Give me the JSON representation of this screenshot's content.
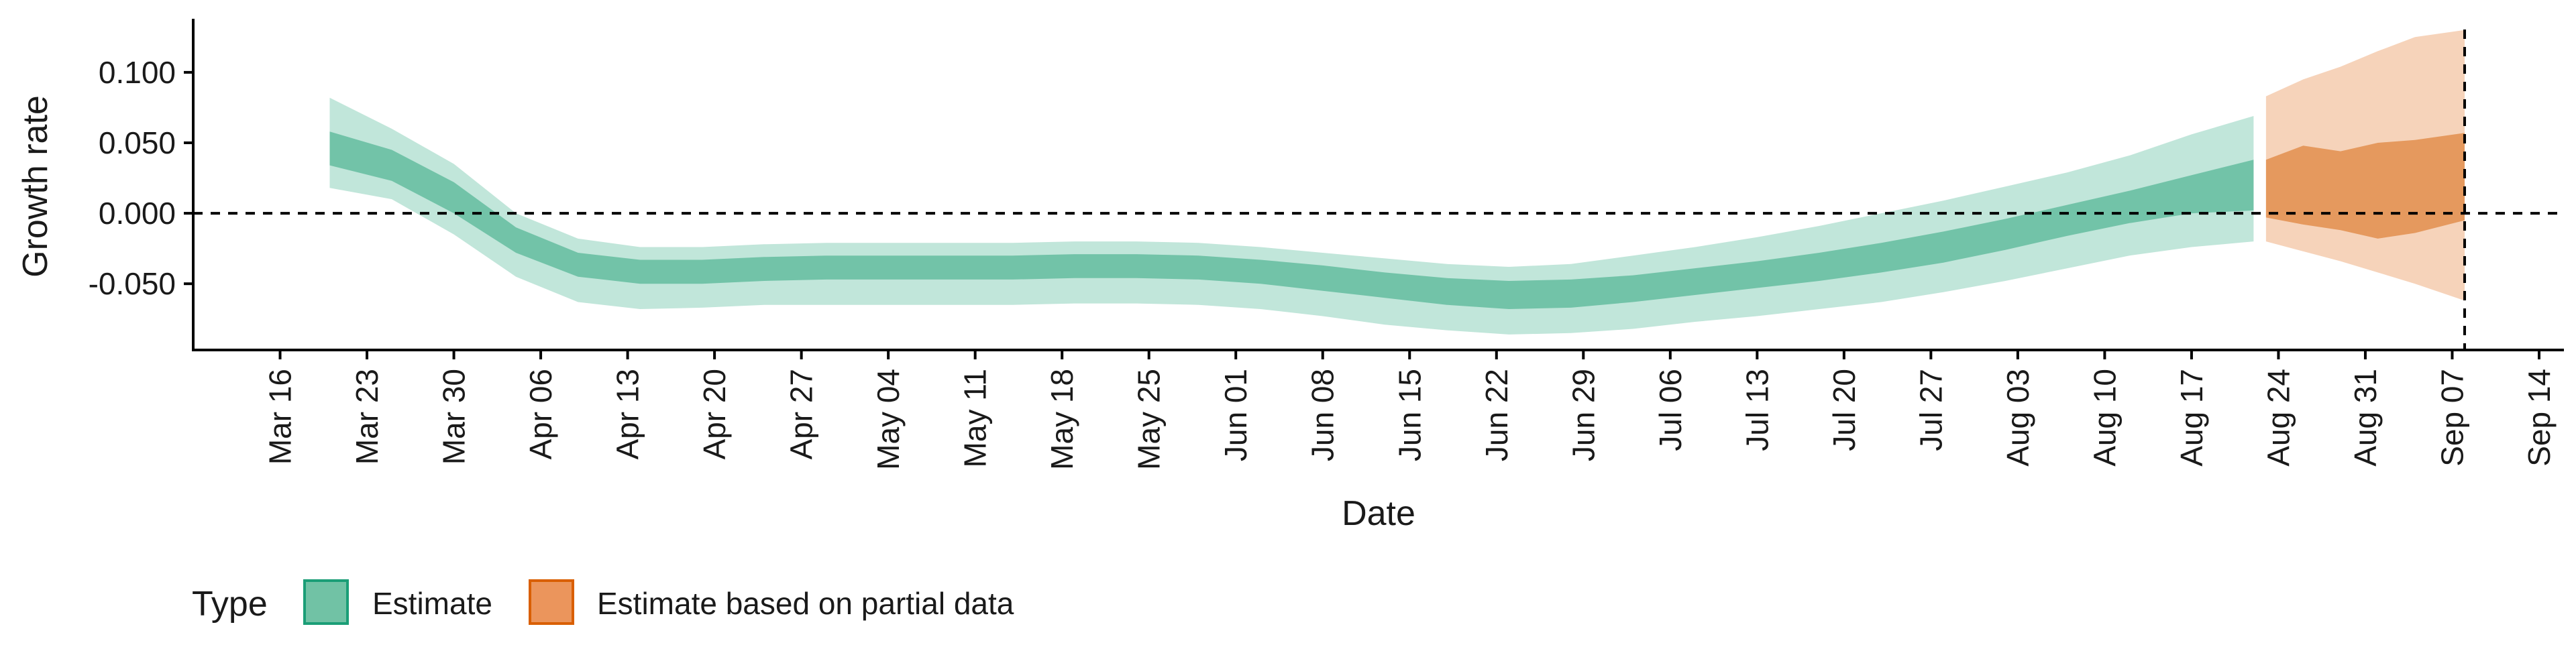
{
  "chart_data": {
    "type": "area",
    "title": "",
    "xlabel": "Date",
    "ylabel": "Growth rate",
    "x_tick_labels": [
      "Mar 16",
      "Mar 23",
      "Mar 30",
      "Apr 06",
      "Apr 13",
      "Apr 20",
      "Apr 27",
      "May 04",
      "May 11",
      "May 18",
      "May 25",
      "Jun 01",
      "Jun 08",
      "Jun 15",
      "Jun 22",
      "Jun 29",
      "Jul 06",
      "Jul 13",
      "Jul 20",
      "Jul 27",
      "Aug 03",
      "Aug 10",
      "Aug 17",
      "Aug 24",
      "Aug 31",
      "Sep 07",
      "Sep 14"
    ],
    "x_tick_dates": [
      "2020-03-16",
      "2020-03-23",
      "2020-03-30",
      "2020-04-06",
      "2020-04-13",
      "2020-04-20",
      "2020-04-27",
      "2020-05-04",
      "2020-05-11",
      "2020-05-18",
      "2020-05-25",
      "2020-06-01",
      "2020-06-08",
      "2020-06-15",
      "2020-06-22",
      "2020-06-29",
      "2020-07-06",
      "2020-07-13",
      "2020-07-20",
      "2020-07-27",
      "2020-08-03",
      "2020-08-10",
      "2020-08-17",
      "2020-08-24",
      "2020-08-31",
      "2020-09-07",
      "2020-09-14"
    ],
    "xlim": [
      "2020-03-09",
      "2020-09-16"
    ],
    "y_tick_labels": [
      "-0.050",
      "0.000",
      "0.050",
      "0.100"
    ],
    "y_ticks": [
      -0.05,
      0,
      0.05,
      0.1
    ],
    "ylim": [
      -0.097,
      0.138
    ],
    "reference_lines": [
      {
        "axis": "y",
        "value": 0,
        "style": "dashed"
      },
      {
        "axis": "x",
        "value": "2020-09-08",
        "style": "dashed"
      }
    ],
    "legend": {
      "title": "Type",
      "position": "bottom-left",
      "items": [
        {
          "label": "Estimate",
          "color": "#66c2a5"
        },
        {
          "label": "Estimate based on partial data",
          "color": "#e98e4f"
        }
      ]
    },
    "colors": {
      "estimate_outer": "#c1e6da",
      "estimate_inner": "#72c3a8",
      "estimate_key_fill": "#71c2a5",
      "estimate_key_border": "#1b9e77",
      "partial_outer": "#f6d3ba",
      "partial_inner": "#e5995e",
      "partial_key_fill": "#eb955c",
      "partial_key_border": "#d95f02"
    },
    "series": [
      {
        "name": "Estimate",
        "x": [
          "2020-03-20",
          "2020-03-25",
          "2020-03-30",
          "2020-04-04",
          "2020-04-09",
          "2020-04-14",
          "2020-04-19",
          "2020-04-24",
          "2020-04-29",
          "2020-05-04",
          "2020-05-09",
          "2020-05-14",
          "2020-05-19",
          "2020-05-24",
          "2020-05-29",
          "2020-06-03",
          "2020-06-08",
          "2020-06-13",
          "2020-06-18",
          "2020-06-23",
          "2020-06-28",
          "2020-07-03",
          "2020-07-08",
          "2020-07-13",
          "2020-07-18",
          "2020-07-23",
          "2020-07-28",
          "2020-08-02",
          "2020-08-07",
          "2020-08-12",
          "2020-08-17",
          "2020-08-22"
        ],
        "outer_lower": [
          0.018,
          0.01,
          -0.015,
          -0.045,
          -0.063,
          -0.068,
          -0.067,
          -0.065,
          -0.065,
          -0.065,
          -0.065,
          -0.065,
          -0.064,
          -0.064,
          -0.065,
          -0.068,
          -0.073,
          -0.079,
          -0.083,
          -0.086,
          -0.085,
          -0.082,
          -0.077,
          -0.073,
          -0.068,
          -0.063,
          -0.056,
          -0.048,
          -0.039,
          -0.03,
          -0.024,
          -0.02
        ],
        "inner_lower": [
          0.034,
          0.023,
          0.0,
          -0.028,
          -0.045,
          -0.05,
          -0.05,
          -0.048,
          -0.047,
          -0.047,
          -0.047,
          -0.047,
          -0.046,
          -0.046,
          -0.047,
          -0.05,
          -0.055,
          -0.06,
          -0.065,
          -0.068,
          -0.067,
          -0.063,
          -0.058,
          -0.053,
          -0.048,
          -0.042,
          -0.035,
          -0.026,
          -0.016,
          -0.007,
          0.0,
          0.002
        ],
        "inner_upper": [
          0.058,
          0.045,
          0.022,
          -0.01,
          -0.028,
          -0.033,
          -0.033,
          -0.031,
          -0.03,
          -0.03,
          -0.03,
          -0.03,
          -0.029,
          -0.029,
          -0.03,
          -0.033,
          -0.037,
          -0.042,
          -0.046,
          -0.048,
          -0.047,
          -0.044,
          -0.039,
          -0.034,
          -0.028,
          -0.021,
          -0.013,
          -0.004,
          0.006,
          0.016,
          0.027,
          0.038
        ],
        "outer_upper": [
          0.082,
          0.06,
          0.035,
          0.0,
          -0.018,
          -0.024,
          -0.024,
          -0.022,
          -0.021,
          -0.021,
          -0.021,
          -0.021,
          -0.02,
          -0.02,
          -0.021,
          -0.024,
          -0.028,
          -0.032,
          -0.036,
          -0.038,
          -0.036,
          -0.03,
          -0.024,
          -0.017,
          -0.009,
          0.0,
          0.009,
          0.019,
          0.029,
          0.041,
          0.056,
          0.069
        ]
      },
      {
        "name": "Estimate based on partial data",
        "x": [
          "2020-08-23",
          "2020-08-26",
          "2020-08-29",
          "2020-09-01",
          "2020-09-04",
          "2020-09-08"
        ],
        "outer_lower": [
          -0.02,
          -0.027,
          -0.034,
          -0.042,
          -0.05,
          -0.062
        ],
        "inner_lower": [
          -0.003,
          -0.008,
          -0.012,
          -0.018,
          -0.014,
          -0.005
        ],
        "inner_upper": [
          0.038,
          0.048,
          0.044,
          0.05,
          0.052,
          0.057
        ],
        "outer_upper": [
          0.083,
          0.095,
          0.104,
          0.115,
          0.125,
          0.13
        ]
      }
    ]
  }
}
